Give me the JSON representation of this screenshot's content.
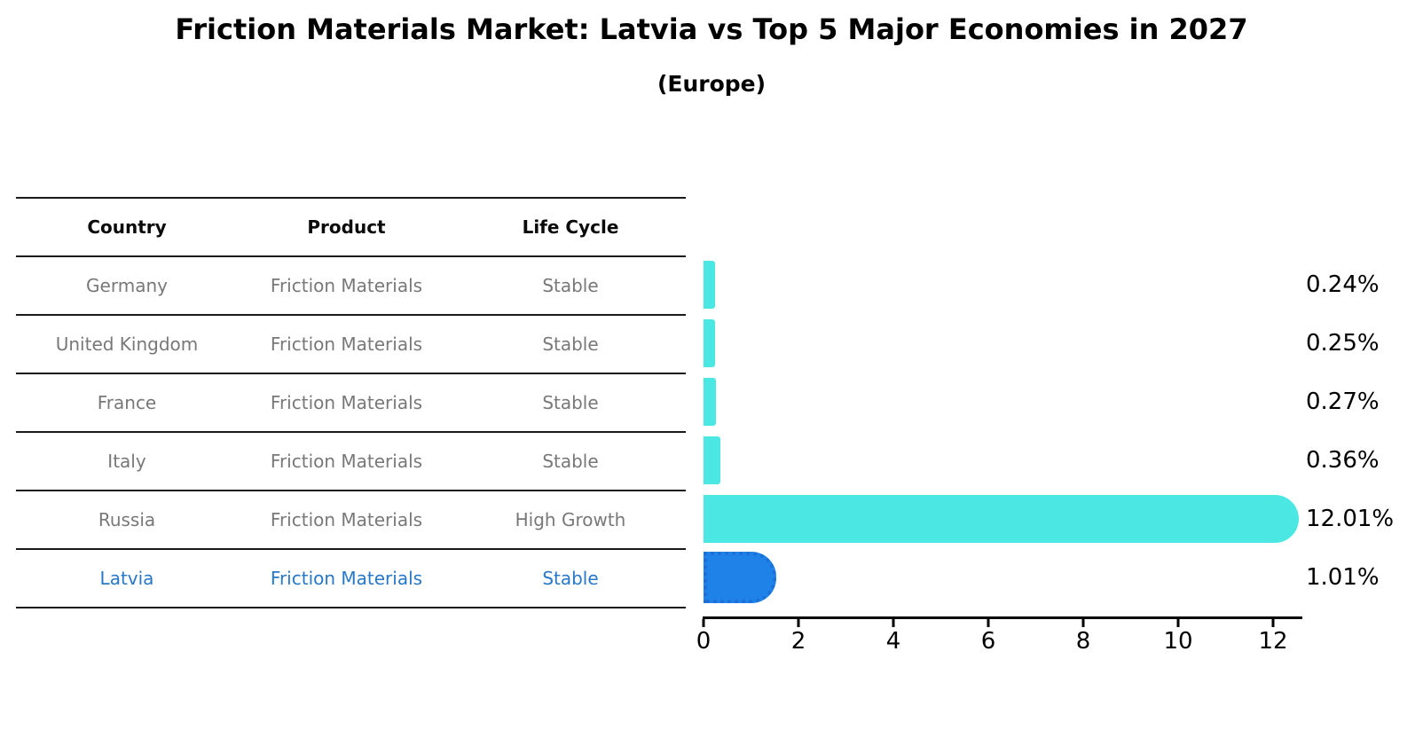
{
  "title": "Friction Materials Market: Latvia vs Top 5 Major Economies in 2027",
  "subtitle": "(Europe)",
  "table": {
    "headers": [
      "Country",
      "Product",
      "Life Cycle"
    ],
    "rows": [
      {
        "country": "Germany",
        "product": "Friction Materials",
        "life_cycle": "Stable",
        "highlight": false
      },
      {
        "country": "United Kingdom",
        "product": "Friction Materials",
        "life_cycle": "Stable",
        "highlight": false
      },
      {
        "country": "France",
        "product": "Friction Materials",
        "life_cycle": "Stable",
        "highlight": false
      },
      {
        "country": "Italy",
        "product": "Friction Materials",
        "life_cycle": "Stable",
        "highlight": false
      },
      {
        "country": "Russia",
        "product": "Friction Materials",
        "life_cycle": "High Growth",
        "highlight": false
      },
      {
        "country": "Latvia",
        "product": "Friction Materials",
        "life_cycle": "Stable",
        "highlight": true
      }
    ]
  },
  "chart_data": {
    "type": "bar",
    "orientation": "horizontal",
    "title": "Friction Materials Market: Latvia vs Top 5 Major Economies in 2027",
    "subtitle": "(Europe)",
    "categories": [
      "Germany",
      "United Kingdom",
      "France",
      "Italy",
      "Russia",
      "Latvia"
    ],
    "values": [
      0.24,
      0.25,
      0.27,
      0.36,
      12.01,
      1.01
    ],
    "value_labels": [
      "0.24%",
      "0.25%",
      "0.27%",
      "0.36%",
      "12.01%",
      "1.01%"
    ],
    "xticks": [
      0,
      2,
      4,
      6,
      8,
      10,
      12
    ],
    "xlim": [
      0,
      12.6
    ],
    "grid": false,
    "legend": false,
    "bar_color": "#4BE8E3",
    "highlight_bar_color": "#1E82E8",
    "highlight_index": 5,
    "highlight_text_color": "#2878C8",
    "xlabel": "",
    "ylabel": ""
  }
}
